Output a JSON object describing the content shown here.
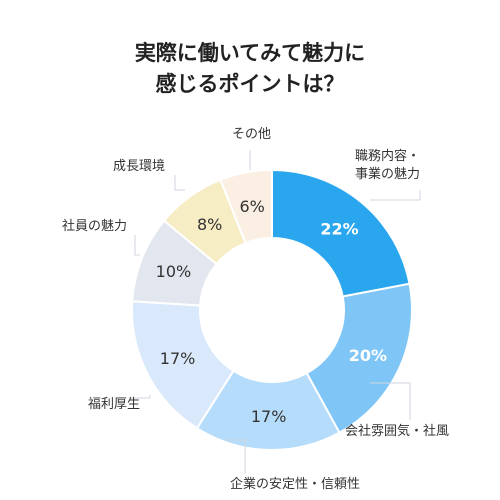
{
  "title_lines": [
    "実際に働いてみて魅力に",
    "感じるポイントは？"
  ],
  "chart_data": {
    "type": "pie",
    "donut": true,
    "title": "実際に働いてみて魅力に感じるポイントは？",
    "slices": [
      {
        "label_lines": [
          "職務内容・",
          "事業の魅力"
        ],
        "value": 22,
        "display": "22%",
        "color": "#2aa6ef",
        "text_color": "#ffffff"
      },
      {
        "label_lines": [
          "会社雰囲気・社風"
        ],
        "value": 20,
        "display": "20%",
        "color": "#7fc6f6",
        "text_color": "#ffffff"
      },
      {
        "label_lines": [
          "企業の安定性・信頼性"
        ],
        "value": 17,
        "display": "17%",
        "color": "#b5dcfa",
        "text_color": "#333333"
      },
      {
        "label_lines": [
          "福利厚生"
        ],
        "value": 17,
        "display": "17%",
        "color": "#d9e9fb",
        "text_color": "#333333"
      },
      {
        "label_lines": [
          "社員の魅力"
        ],
        "value": 10,
        "display": "10%",
        "color": "#e2e6ee",
        "text_color": "#333333"
      },
      {
        "label_lines": [
          "成長環境"
        ],
        "value": 8,
        "display": "8%",
        "color": "#f7edc4",
        "text_color": "#333333"
      },
      {
        "label_lines": [
          "その他"
        ],
        "value": 6,
        "display": "6%",
        "color": "#fbeee3",
        "text_color": "#333333"
      }
    ]
  }
}
